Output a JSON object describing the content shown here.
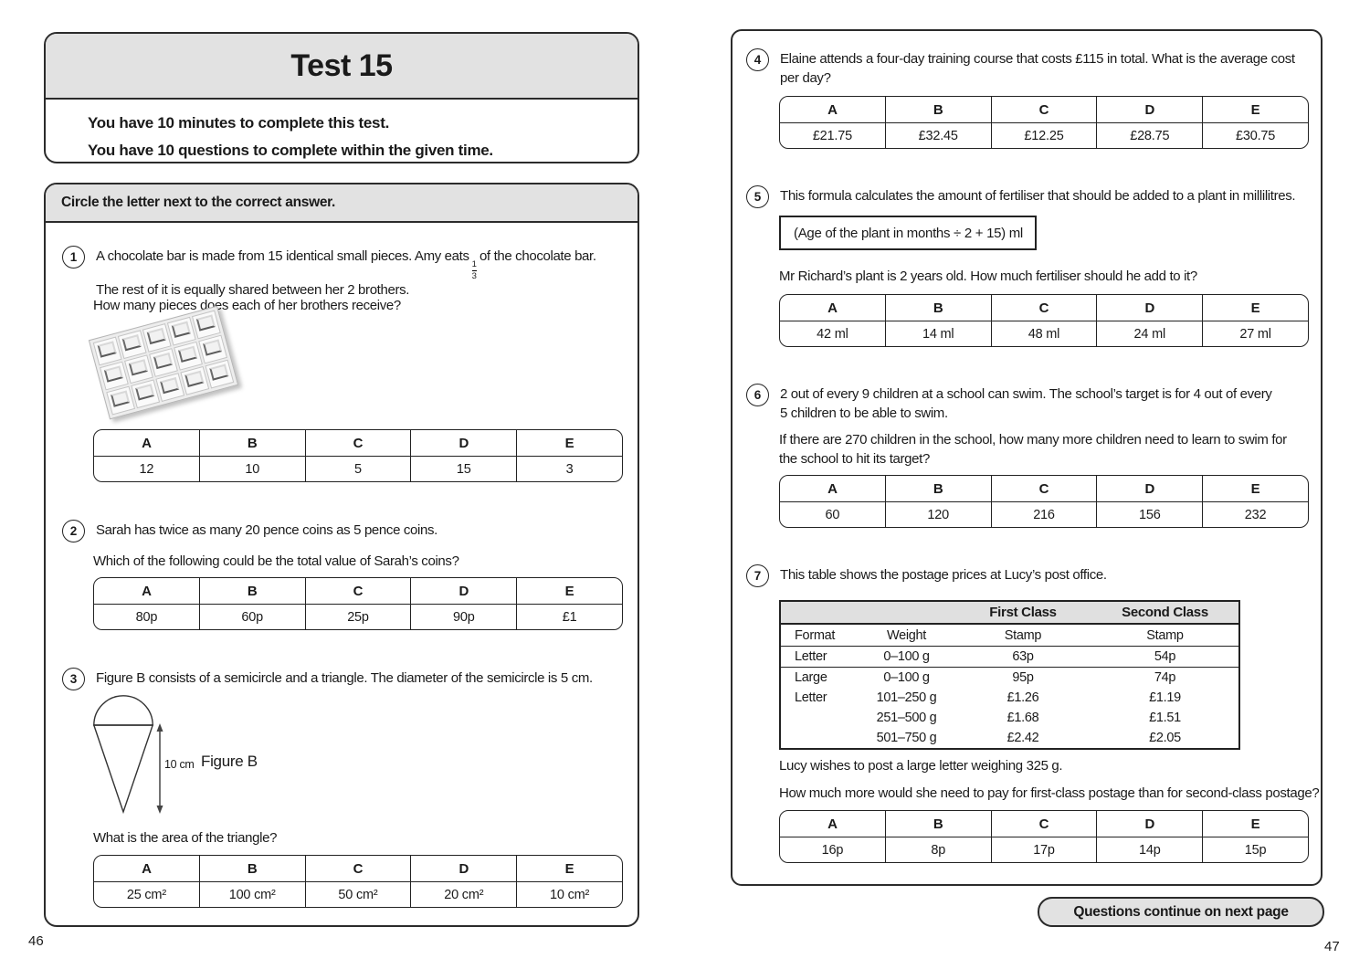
{
  "page_left": {
    "page_number": "46",
    "header": {
      "title": "Test 15",
      "line1": "You have 10 minutes to complete this test.",
      "line2": "You have 10 questions to complete within the given time.",
      "timer_value": "10"
    },
    "directive": "Circle the letter next to the correct answer.",
    "q1": {
      "number": "1",
      "line1_before": "A chocolate bar is made from 15 identical small pieces. Amy eats",
      "fraction_numerator": "1",
      "fraction_denominator": "3",
      "line1_after": "of the chocolate bar.",
      "line2": "The rest of it is equally shared between her 2 brothers.",
      "prompt": "How many pieces does each of her brothers receive?",
      "options": {
        "letters": [
          "A",
          "B",
          "C",
          "D",
          "E"
        ],
        "values": [
          "12",
          "10",
          "5",
          "15",
          "3"
        ]
      }
    },
    "q2": {
      "number": "2",
      "line1": "Sarah has twice as many 20 pence coins as 5 pence coins.",
      "prompt": "Which of the following could be the total value of Sarah’s coins?",
      "options": {
        "letters": [
          "A",
          "B",
          "C",
          "D",
          "E"
        ],
        "values": [
          "80p",
          "60p",
          "25p",
          "90p",
          "£1"
        ]
      }
    },
    "q3": {
      "number": "3",
      "line1": "Figure B consists of a semicircle and a triangle. The diameter of the semicircle is 5 cm.",
      "dimension_label": "10 cm",
      "figure_label": "Figure B",
      "prompt": "What is the area of the triangle?",
      "options": {
        "letters": [
          "A",
          "B",
          "C",
          "D",
          "E"
        ],
        "values": [
          "25 cm²",
          "100 cm²",
          "50 cm²",
          "20 cm²",
          "10 cm²"
        ]
      }
    }
  },
  "page_right": {
    "page_number": "47",
    "q4": {
      "number": "4",
      "line1": "Elaine attends a four-day training course that costs £115 in total. What is the average cost",
      "line2": "per day?",
      "options": {
        "letters": [
          "A",
          "B",
          "C",
          "D",
          "E"
        ],
        "values": [
          "£21.75",
          "£32.45",
          "£12.25",
          "£28.75",
          "£30.75"
        ]
      }
    },
    "q5": {
      "number": "5",
      "line1": "This formula calculates the amount of fertiliser that should be added to a plant in millilitres.",
      "formula": "(Age of the plant in months ÷ 2 + 15) ml",
      "line2": "Mr Richard’s plant is 2 years old. How much fertiliser should he add to it?",
      "options": {
        "letters": [
          "A",
          "B",
          "C",
          "D",
          "E"
        ],
        "values": [
          "42 ml",
          "14 ml",
          "48 ml",
          "24 ml",
          "27 ml"
        ]
      }
    },
    "q6": {
      "number": "6",
      "para1_line1": "2 out of every 9 children at a school can swim. The school’s target is for 4 out of every",
      "para1_line2": "5 children to be able to swim.",
      "para2_line1": "If there are 270 children in the school, how many more children need to learn to swim for",
      "para2_line2": "the school to hit its target?",
      "options": {
        "letters": [
          "A",
          "B",
          "C",
          "D",
          "E"
        ],
        "values": [
          "60",
          "120",
          "216",
          "156",
          "232"
        ]
      }
    },
    "q7": {
      "number": "7",
      "line1": "This table shows the postage prices at Lucy’s post office.",
      "table": {
        "class_headers": [
          "First Class",
          "Second Class"
        ],
        "col_headers": [
          "Format",
          "Weight",
          "Stamp",
          "Stamp"
        ],
        "rows": [
          [
            "Letter",
            "0–100 g",
            "63p",
            "54p"
          ],
          [
            "Large",
            "0–100 g",
            "95p",
            "74p"
          ],
          [
            "Letter",
            "101–250 g",
            "£1.26",
            "£1.19"
          ],
          [
            "",
            "251–500 g",
            "£1.68",
            "£1.51"
          ],
          [
            "",
            "501–750 g",
            "£2.42",
            "£2.05"
          ]
        ]
      },
      "line2": "Lucy wishes to post a large letter weighing 325 g.",
      "line3": "How much more would she need to pay for first-class postage than for second-class postage?",
      "options": {
        "letters": [
          "A",
          "B",
          "C",
          "D",
          "E"
        ],
        "values": [
          "16p",
          "8p",
          "17p",
          "14p",
          "15p"
        ]
      }
    },
    "continue_note": "Questions continue on next page"
  }
}
